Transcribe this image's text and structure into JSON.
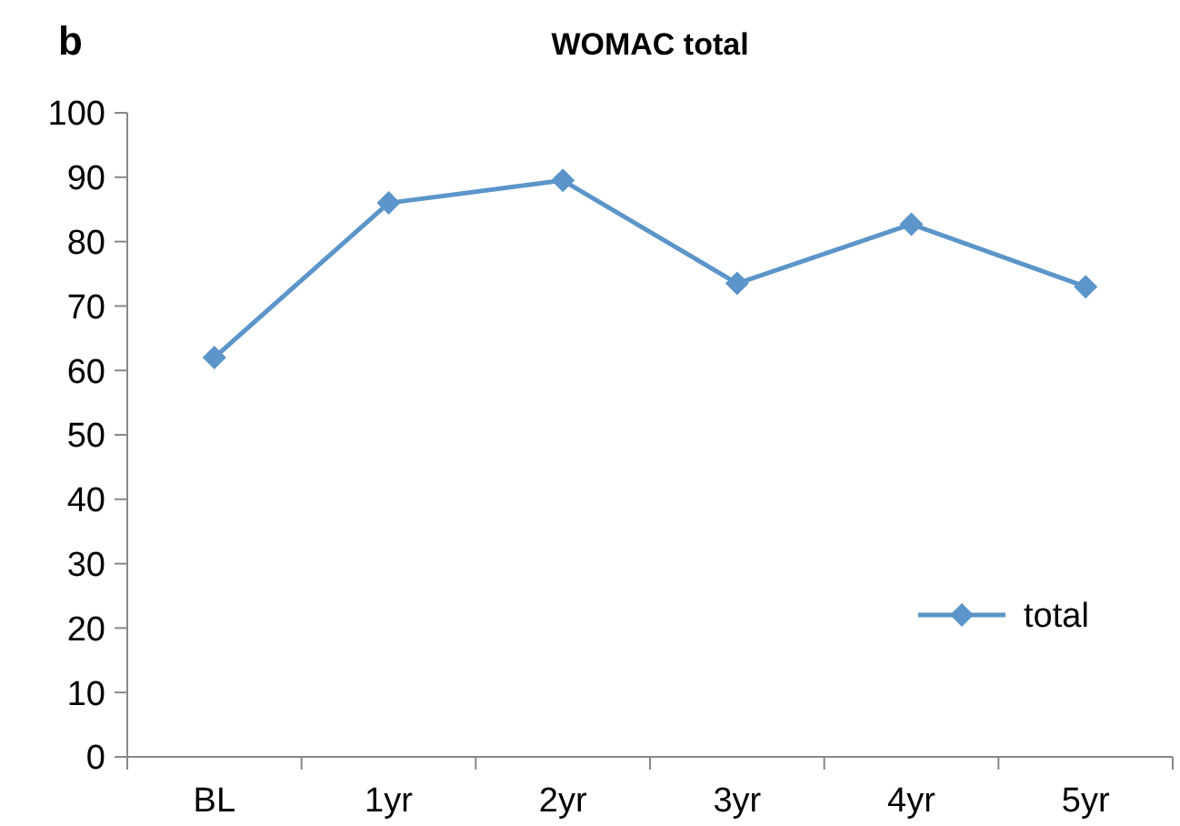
{
  "chart_data": {
    "type": "line",
    "title": "WOMAC total",
    "annotations": [
      "b"
    ],
    "categories": [
      "BL",
      "1yr",
      "2yr",
      "3yr",
      "4yr",
      "5yr"
    ],
    "series": [
      {
        "name": "total",
        "color": "#5b95c9",
        "values": [
          62,
          86,
          89.5,
          73.5,
          82.7,
          73
        ]
      }
    ],
    "ylim": [
      0,
      100
    ],
    "yticks": [
      0,
      10,
      20,
      30,
      40,
      50,
      60,
      70,
      80,
      90,
      100
    ],
    "grid": false,
    "legend": "bottom right",
    "marker": "diamond",
    "line_style": "solid"
  }
}
